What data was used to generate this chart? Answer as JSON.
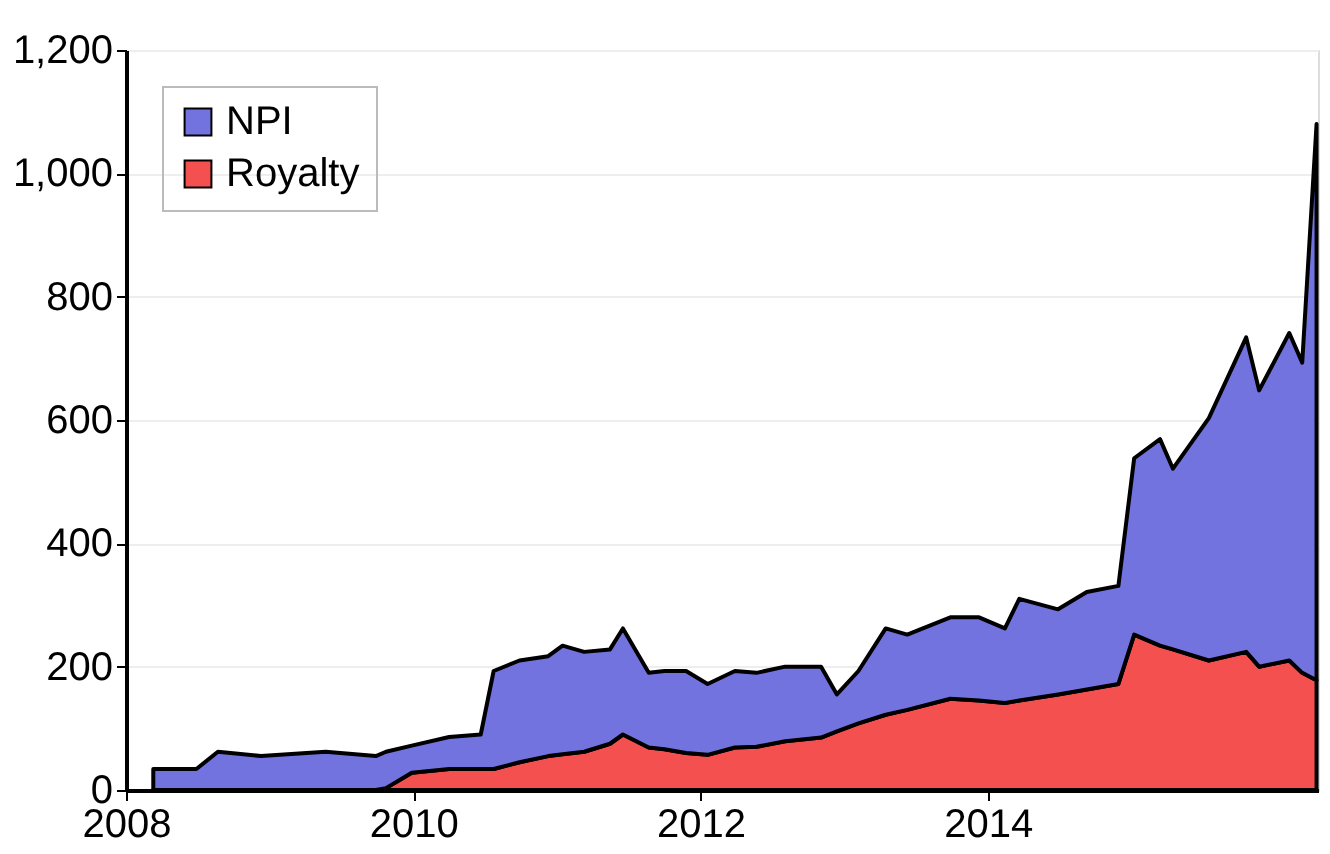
{
  "chart_data": {
    "type": "area",
    "stacked": true,
    "x": [
      2008.19,
      2008.49,
      2008.64,
      2008.94,
      2009.39,
      2009.74,
      2009.81,
      2009.99,
      2010.25,
      2010.47,
      2010.56,
      2010.74,
      2010.94,
      2011.04,
      2011.19,
      2011.37,
      2011.46,
      2011.64,
      2011.75,
      2011.9,
      2012.05,
      2012.24,
      2012.39,
      2012.59,
      2012.84,
      2012.95,
      2013.1,
      2013.29,
      2013.44,
      2013.74,
      2013.94,
      2014.12,
      2014.22,
      2014.49,
      2014.69,
      2014.91,
      2015.02,
      2015.2,
      2015.29,
      2015.54,
      2015.8,
      2015.89,
      2016.1,
      2016.19,
      2016.29
    ],
    "series": [
      {
        "name": "Royalty",
        "color": "#f45050",
        "values": [
          0,
          0,
          0,
          0,
          0,
          0,
          3,
          28,
          34,
          34,
          34,
          45,
          55,
          58,
          62,
          75,
          90,
          69,
          66,
          60,
          57,
          69,
          70,
          79,
          85,
          95,
          108,
          122,
          130,
          148,
          145,
          141,
          145,
          155,
          163,
          172,
          252,
          234,
          228,
          210,
          224,
          200,
          210,
          190,
          178
        ]
      },
      {
        "name": "NPI",
        "color": "#7373e0",
        "values": [
          34,
          34,
          62,
          55,
          62,
          55,
          59,
          44,
          52,
          56,
          159,
          165,
          162,
          176,
          162,
          153,
          172,
          121,
          127,
          133,
          115,
          124,
          120,
          121,
          115,
          60,
          85,
          140,
          122,
          132,
          135,
          121,
          165,
          138,
          158,
          159,
          286,
          335,
          293,
          393,
          510,
          448,
          531,
          503,
          902
        ]
      }
    ],
    "xlim": [
      2008,
      2016.3
    ],
    "xticks": [
      2008,
      2010,
      2012,
      2014
    ],
    "ylim": [
      0,
      1200
    ],
    "yticks": [
      {
        "value": 0,
        "label": "0"
      },
      {
        "value": 200,
        "label": "200"
      },
      {
        "value": 400,
        "label": "400"
      },
      {
        "value": 600,
        "label": "600"
      },
      {
        "value": 800,
        "label": "800"
      },
      {
        "value": 1000,
        "label": "1,000"
      },
      {
        "value": 1200,
        "label": "1,200"
      }
    ],
    "grid": "y",
    "legend": "top left"
  }
}
